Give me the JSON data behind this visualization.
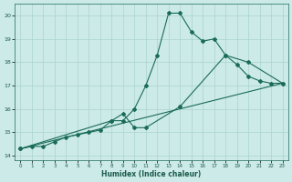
{
  "xlabel": "Humidex (Indice chaleur)",
  "bg_color": "#cceae7",
  "line_color": "#1a6b5a",
  "grid_color": "#aad4cf",
  "xlim": [
    -0.5,
    23.5
  ],
  "ylim": [
    13.8,
    20.5
  ],
  "yticks": [
    14,
    15,
    16,
    17,
    18,
    19,
    20
  ],
  "xticks": [
    0,
    1,
    2,
    3,
    4,
    5,
    6,
    7,
    8,
    9,
    10,
    11,
    12,
    13,
    14,
    15,
    16,
    17,
    18,
    19,
    20,
    21,
    22,
    23
  ],
  "line1_x": [
    0,
    1,
    2,
    3,
    4,
    5,
    6,
    7,
    8,
    9,
    10,
    11,
    12,
    13,
    14,
    15,
    16,
    17,
    18,
    19,
    20,
    21,
    22,
    23
  ],
  "line1_y": [
    14.3,
    14.4,
    14.4,
    14.6,
    14.8,
    14.9,
    15.0,
    15.1,
    15.5,
    15.5,
    16.0,
    17.0,
    18.3,
    20.1,
    20.1,
    19.3,
    18.9,
    19.0,
    18.3,
    17.9,
    17.4,
    17.2,
    17.1,
    17.1
  ],
  "line2_x": [
    0,
    8,
    9,
    10,
    11,
    14,
    18,
    20,
    23
  ],
  "line2_y": [
    14.3,
    15.5,
    15.8,
    15.2,
    15.2,
    16.1,
    18.3,
    18.0,
    17.1
  ],
  "line3_x": [
    0,
    23
  ],
  "line3_y": [
    14.3,
    17.1
  ]
}
